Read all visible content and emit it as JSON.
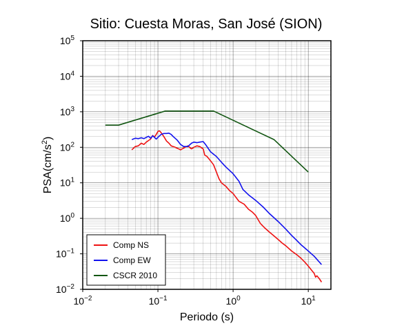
{
  "chart_data": {
    "type": "line",
    "title": "Sitio: Cuesta Moras, San José (SION)",
    "xlabel": "Periodo (s)",
    "ylabel_base": "PSA(cm/s",
    "ylabel_exp": "2",
    "ylabel_close": ")",
    "x_scale": "log",
    "y_scale": "log",
    "xlim": [
      0.01,
      20
    ],
    "ylim": [
      0.01,
      100000
    ],
    "grid": true,
    "legend_position": "bottom-left",
    "x_ticks": [
      {
        "value": 0.01,
        "base": "10",
        "exp": "−2"
      },
      {
        "value": 0.1,
        "base": "10",
        "exp": "−1"
      },
      {
        "value": 1,
        "base": "10",
        "exp": "0"
      },
      {
        "value": 10,
        "base": "10",
        "exp": "1"
      }
    ],
    "y_ticks": [
      {
        "value": 0.01,
        "base": "10",
        "exp": "−2"
      },
      {
        "value": 0.1,
        "base": "10",
        "exp": "−1"
      },
      {
        "value": 1,
        "base": "10",
        "exp": "0"
      },
      {
        "value": 10,
        "base": "10",
        "exp": "1"
      },
      {
        "value": 100,
        "base": "10",
        "exp": "2"
      },
      {
        "value": 1000,
        "base": "10",
        "exp": "3"
      },
      {
        "value": 10000,
        "base": "10",
        "exp": "4"
      },
      {
        "value": 100000,
        "base": "10",
        "exp": "5"
      }
    ],
    "series": [
      {
        "name": "Comp NS",
        "color": "#ee1111",
        "points": [
          [
            0.045,
            85
          ],
          [
            0.05,
            105
          ],
          [
            0.055,
            110
          ],
          [
            0.06,
            130
          ],
          [
            0.065,
            120
          ],
          [
            0.07,
            140
          ],
          [
            0.075,
            155
          ],
          [
            0.08,
            170
          ],
          [
            0.085,
            215
          ],
          [
            0.09,
            195
          ],
          [
            0.095,
            230
          ],
          [
            0.1,
            280
          ],
          [
            0.105,
            290
          ],
          [
            0.11,
            260
          ],
          [
            0.12,
            200
          ],
          [
            0.13,
            150
          ],
          [
            0.14,
            130
          ],
          [
            0.15,
            110
          ],
          [
            0.17,
            100
          ],
          [
            0.2,
            85
          ],
          [
            0.22,
            95
          ],
          [
            0.25,
            110
          ],
          [
            0.28,
            90
          ],
          [
            0.3,
            100
          ],
          [
            0.33,
            110
          ],
          [
            0.36,
            105
          ],
          [
            0.4,
            90
          ],
          [
            0.42,
            60
          ],
          [
            0.45,
            55
          ],
          [
            0.5,
            42
          ],
          [
            0.55,
            32
          ],
          [
            0.6,
            20
          ],
          [
            0.65,
            13
          ],
          [
            0.7,
            10
          ],
          [
            0.8,
            8
          ],
          [
            0.9,
            6
          ],
          [
            1.0,
            5
          ],
          [
            1.1,
            3.8
          ],
          [
            1.2,
            3.0
          ],
          [
            1.4,
            2.5
          ],
          [
            1.6,
            1.8
          ],
          [
            1.8,
            1.5
          ],
          [
            2.0,
            1.2
          ],
          [
            2.3,
            0.72
          ],
          [
            2.6,
            0.55
          ],
          [
            3.0,
            0.42
          ],
          [
            3.5,
            0.32
          ],
          [
            4.0,
            0.25
          ],
          [
            4.5,
            0.2
          ],
          [
            5.0,
            0.17
          ],
          [
            6.0,
            0.12
          ],
          [
            7.0,
            0.095
          ],
          [
            8.0,
            0.075
          ],
          [
            9.0,
            0.058
          ],
          [
            10.0,
            0.045
          ],
          [
            11.0,
            0.035
          ],
          [
            12.0,
            0.028
          ],
          [
            12.5,
            0.022
          ],
          [
            13.0,
            0.024
          ],
          [
            14.0,
            0.02
          ],
          [
            15.0,
            0.016
          ]
        ]
      },
      {
        "name": "Comp EW",
        "color": "#1111ee",
        "points": [
          [
            0.045,
            165
          ],
          [
            0.05,
            180
          ],
          [
            0.055,
            175
          ],
          [
            0.06,
            185
          ],
          [
            0.065,
            175
          ],
          [
            0.07,
            190
          ],
          [
            0.075,
            205
          ],
          [
            0.08,
            180
          ],
          [
            0.085,
            210
          ],
          [
            0.09,
            190
          ],
          [
            0.095,
            170
          ],
          [
            0.1,
            190
          ],
          [
            0.11,
            230
          ],
          [
            0.12,
            245
          ],
          [
            0.13,
            245
          ],
          [
            0.14,
            250
          ],
          [
            0.15,
            230
          ],
          [
            0.16,
            200
          ],
          [
            0.18,
            160
          ],
          [
            0.2,
            120
          ],
          [
            0.22,
            105
          ],
          [
            0.25,
            105
          ],
          [
            0.28,
            130
          ],
          [
            0.3,
            140
          ],
          [
            0.33,
            135
          ],
          [
            0.36,
            140
          ],
          [
            0.4,
            145
          ],
          [
            0.43,
            120
          ],
          [
            0.5,
            75
          ],
          [
            0.6,
            55
          ],
          [
            0.7,
            38
          ],
          [
            0.8,
            28
          ],
          [
            1.0,
            18
          ],
          [
            1.2,
            11
          ],
          [
            1.35,
            6.5
          ],
          [
            1.6,
            4.6
          ],
          [
            2.0,
            3.2
          ],
          [
            2.5,
            2.1
          ],
          [
            3.0,
            1.4
          ],
          [
            4.0,
            0.8
          ],
          [
            5.0,
            0.5
          ],
          [
            6.0,
            0.33
          ],
          [
            7.0,
            0.24
          ],
          [
            8.0,
            0.18
          ],
          [
            10.0,
            0.12
          ],
          [
            12.0,
            0.085
          ],
          [
            15.0,
            0.05
          ]
        ]
      },
      {
        "name": "CSCR 2010",
        "color": "#115511",
        "points": [
          [
            0.02,
            420
          ],
          [
            0.03,
            420
          ],
          [
            0.125,
            1050
          ],
          [
            0.55,
            1050
          ],
          [
            3.5,
            165
          ],
          [
            10.0,
            20
          ]
        ]
      }
    ]
  }
}
